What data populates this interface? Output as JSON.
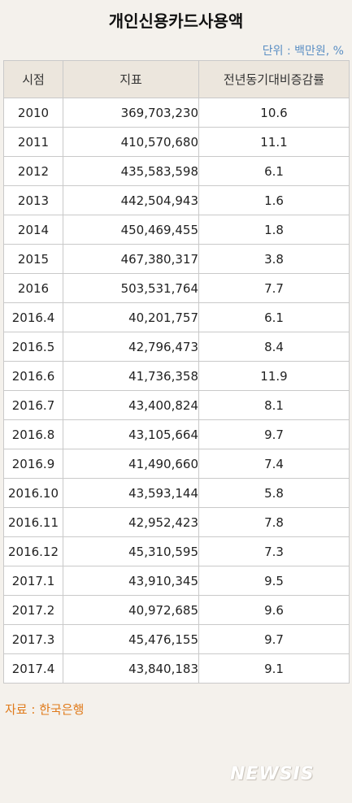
{
  "title": "개인신용카드사용액",
  "unit": "단위 : 백만원, %",
  "table": {
    "headers": [
      "시점",
      "지표",
      "전년동기대비증감률"
    ],
    "rows": [
      [
        "2010",
        "369,703,230",
        "10.6"
      ],
      [
        "2011",
        "410,570,680",
        "11.1"
      ],
      [
        "2012",
        "435,583,598",
        "6.1"
      ],
      [
        "2013",
        "442,504,943",
        "1.6"
      ],
      [
        "2014",
        "450,469,455",
        "1.8"
      ],
      [
        "2015",
        "467,380,317",
        "3.8"
      ],
      [
        "2016",
        "503,531,764",
        "7.7"
      ],
      [
        "2016.4",
        "40,201,757",
        "6.1"
      ],
      [
        "2016.5",
        "42,796,473",
        "8.4"
      ],
      [
        "2016.6",
        "41,736,358",
        "11.9"
      ],
      [
        "2016.7",
        "43,400,824",
        "8.1"
      ],
      [
        "2016.8",
        "43,105,664",
        "9.7"
      ],
      [
        "2016.9",
        "41,490,660",
        "7.4"
      ],
      [
        "2016.10",
        "43,593,144",
        "5.8"
      ],
      [
        "2016.11",
        "42,952,423",
        "7.8"
      ],
      [
        "2016.12",
        "45,310,595",
        "7.3"
      ],
      [
        "2017.1",
        "43,910,345",
        "9.5"
      ],
      [
        "2017.2",
        "40,972,685",
        "9.6"
      ],
      [
        "2017.3",
        "45,476,155",
        "9.7"
      ],
      [
        "2017.4",
        "43,840,183",
        "9.1"
      ]
    ]
  },
  "source": "자료 : 한국은행",
  "watermark": "NEWSIS",
  "colors": {
    "background": "#f4f1ec",
    "header_background": "#ece6dd",
    "unit_text": "#5b8fc4",
    "source_text": "#e07a1a"
  }
}
